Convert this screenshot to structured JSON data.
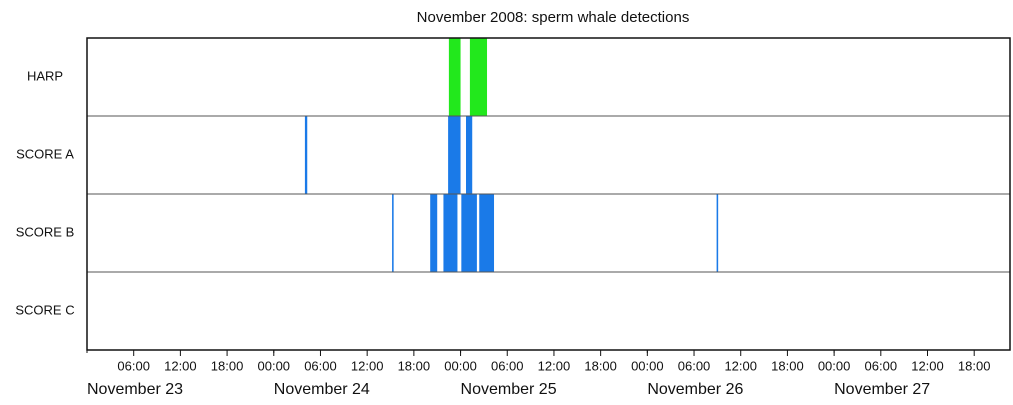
{
  "chart_data": {
    "type": "timeline",
    "title": "November 2008: sperm whale detections",
    "categories": [
      "HARP",
      "SCORE A",
      "SCORE B",
      "SCORE C"
    ],
    "series": [
      {
        "name": "HARP",
        "color": "#22e81c",
        "intervals": [
          [
            46.5,
            48.0
          ],
          [
            49.2,
            51.4
          ]
        ]
      },
      {
        "name": "SCORE A",
        "color": "#1a7ae8",
        "intervals": [
          [
            28.0,
            28.3
          ],
          [
            46.4,
            48.0
          ],
          [
            48.7,
            49.5
          ]
        ]
      },
      {
        "name": "SCORE B",
        "color": "#1a7ae8",
        "intervals": [
          [
            39.2,
            39.4
          ],
          [
            44.1,
            45.0
          ],
          [
            45.8,
            47.6
          ],
          [
            48.1,
            50.1
          ],
          [
            50.4,
            52.3
          ],
          [
            80.9,
            81.1
          ]
        ]
      },
      {
        "name": "SCORE C",
        "color": "#1a7ae8",
        "intervals": []
      }
    ],
    "xlim": [
      0,
      118.6
    ],
    "xticks": [
      {
        "value": 6,
        "label": "06:00"
      },
      {
        "value": 12,
        "label": "12:00"
      },
      {
        "value": 18,
        "label": "18:00"
      },
      {
        "value": 24,
        "label": "00:00"
      },
      {
        "value": 30,
        "label": "06:00"
      },
      {
        "value": 36,
        "label": "12:00"
      },
      {
        "value": 42,
        "label": "18:00"
      },
      {
        "value": 48,
        "label": "00:00"
      },
      {
        "value": 54,
        "label": "06:00"
      },
      {
        "value": 60,
        "label": "12:00"
      },
      {
        "value": 66,
        "label": "18:00"
      },
      {
        "value": 72,
        "label": "00:00"
      },
      {
        "value": 78,
        "label": "06:00"
      },
      {
        "value": 84,
        "label": "12:00"
      },
      {
        "value": 90,
        "label": "18:00"
      },
      {
        "value": 96,
        "label": "00:00"
      },
      {
        "value": 102,
        "label": "06:00"
      },
      {
        "value": 108,
        "label": "12:00"
      },
      {
        "value": 114,
        "label": "18:00"
      }
    ],
    "day_labels": [
      {
        "value": 0,
        "label": "November 23"
      },
      {
        "value": 24,
        "label": "November 24"
      },
      {
        "value": 48,
        "label": "November 25"
      },
      {
        "value": 72,
        "label": "November 26"
      },
      {
        "value": 96,
        "label": "November 27"
      }
    ]
  }
}
